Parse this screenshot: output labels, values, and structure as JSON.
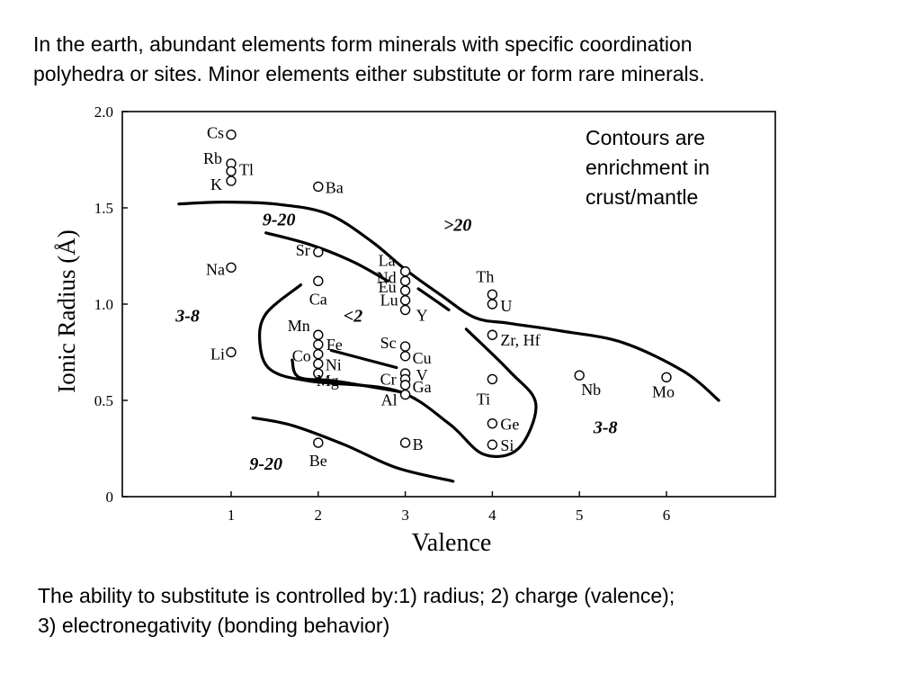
{
  "heading": {
    "line1": "In the earth, abundant elements form minerals with specific coordination",
    "line2": "polyhedra or sites.  Minor elements either substitute or form rare minerals."
  },
  "footer": {
    "line1": "The ability to substitute is controlled by:1) radius; 2) charge (valence);",
    "line2": "3) electronegativity (bonding behavior)"
  },
  "chart_data": {
    "type": "scatter",
    "title": "",
    "xlabel": "Valence",
    "ylabel": "Ionic Radius (Å)",
    "xlim": [
      -0.25,
      7.25
    ],
    "ylim": [
      0,
      2.0
    ],
    "x_ticks": [
      1,
      2,
      3,
      4,
      5,
      6
    ],
    "y_ticks": [
      0,
      0.5,
      1.0,
      1.5,
      2.0
    ],
    "y_tick_labels": [
      "0",
      "0.5",
      "1.0",
      "1.5",
      "2.0"
    ],
    "grid": false,
    "annotation_box": [
      "Contours are",
      "enrichment in",
      "crust/mantle"
    ],
    "points": [
      {
        "label": "Cs",
        "x": 1,
        "y": 1.88
      },
      {
        "label": "Rb",
        "x": 1,
        "y": 1.73
      },
      {
        "label": "Tl",
        "x": 1,
        "y": 1.69
      },
      {
        "label": "K",
        "x": 1,
        "y": 1.64
      },
      {
        "label": "Na",
        "x": 1,
        "y": 1.19
      },
      {
        "label": "Li",
        "x": 1,
        "y": 0.75
      },
      {
        "label": "Ba",
        "x": 2,
        "y": 1.61
      },
      {
        "label": "Sr",
        "x": 2,
        "y": 1.27
      },
      {
        "label": "Ca",
        "x": 2,
        "y": 1.12
      },
      {
        "label": "Mn",
        "x": 2,
        "y": 0.84
      },
      {
        "label": "Fe",
        "x": 2,
        "y": 0.79
      },
      {
        "label": "Co",
        "x": 2,
        "y": 0.74
      },
      {
        "label": "Ni",
        "x": 2,
        "y": 0.69
      },
      {
        "label": "Mg",
        "x": 2,
        "y": 0.64
      },
      {
        "label": "Be",
        "x": 2,
        "y": 0.28
      },
      {
        "label": "La",
        "x": 3,
        "y": 1.17
      },
      {
        "label": "Nd",
        "x": 3,
        "y": 1.12
      },
      {
        "label": "Eu",
        "x": 3,
        "y": 1.07
      },
      {
        "label": "Lu",
        "x": 3,
        "y": 1.02
      },
      {
        "label": "Y",
        "x": 3,
        "y": 0.97
      },
      {
        "label": "Sc",
        "x": 3,
        "y": 0.78
      },
      {
        "label": "Cu",
        "x": 3,
        "y": 0.73
      },
      {
        "label": "V",
        "x": 3,
        "y": 0.64
      },
      {
        "label": "Cr",
        "x": 3,
        "y": 0.61
      },
      {
        "label": "Ga",
        "x": 3,
        "y": 0.58
      },
      {
        "label": "Al",
        "x": 3,
        "y": 0.53
      },
      {
        "label": "B",
        "x": 3,
        "y": 0.28
      },
      {
        "label": "Th",
        "x": 4,
        "y": 1.05
      },
      {
        "label": "U",
        "x": 4,
        "y": 1.0
      },
      {
        "label": "Zr, Hf",
        "x": 4,
        "y": 0.84
      },
      {
        "label": "Ti",
        "x": 4,
        "y": 0.61
      },
      {
        "label": "Ge",
        "x": 4,
        "y": 0.38
      },
      {
        "label": "Si",
        "x": 4,
        "y": 0.27
      },
      {
        "label": "Nb",
        "x": 5,
        "y": 0.63
      },
      {
        "label": "Mo",
        "x": 6,
        "y": 0.62
      }
    ],
    "contour_labels": [
      {
        "label": "9-20",
        "x": 1.55,
        "y": 1.41
      },
      {
        "label": ">20",
        "x": 3.6,
        "y": 1.38
      },
      {
        "label": "3-8",
        "x": 0.5,
        "y": 0.91
      },
      {
        "label": "<2",
        "x": 2.4,
        "y": 0.91
      },
      {
        "label": "3-8",
        "x": 5.3,
        "y": 0.33
      },
      {
        "label": "9-20",
        "x": 1.4,
        "y": 0.14
      }
    ],
    "contours": [
      {
        "name": "outer-upper",
        "points": [
          [
            0.4,
            1.52
          ],
          [
            0.9,
            1.53
          ],
          [
            1.5,
            1.52
          ],
          [
            2.1,
            1.47
          ],
          [
            2.6,
            1.33
          ],
          [
            3.0,
            1.18
          ],
          [
            3.4,
            1.05
          ],
          [
            3.8,
            0.93
          ],
          [
            4.2,
            0.9
          ],
          [
            4.8,
            0.86
          ],
          [
            5.5,
            0.8
          ],
          [
            6.2,
            0.65
          ],
          [
            6.6,
            0.5
          ]
        ]
      },
      {
        "name": "inner-upper",
        "points": [
          [
            1.4,
            1.37
          ],
          [
            1.9,
            1.31
          ],
          [
            2.4,
            1.22
          ],
          [
            2.8,
            1.12
          ]
        ]
      },
      {
        "name": "inner-upper-2",
        "points": [
          [
            3.15,
            1.08
          ],
          [
            3.5,
            0.97
          ]
        ]
      },
      {
        "name": "loop",
        "points": [
          [
            1.8,
            1.1
          ],
          [
            1.4,
            0.95
          ],
          [
            1.33,
            0.8
          ],
          [
            1.45,
            0.66
          ],
          [
            1.9,
            0.6
          ],
          [
            2.9,
            0.55
          ],
          [
            3.5,
            0.38
          ],
          [
            3.9,
            0.22
          ],
          [
            4.3,
            0.25
          ],
          [
            4.5,
            0.48
          ],
          [
            4.2,
            0.65
          ],
          [
            3.7,
            0.87
          ]
        ]
      },
      {
        "name": "inner-arc",
        "points": [
          [
            1.7,
            0.71
          ],
          [
            1.78,
            0.62
          ],
          [
            2.2,
            0.6
          ],
          [
            3.0,
            0.54
          ]
        ]
      },
      {
        "name": "inner-segment",
        "points": [
          [
            2.15,
            0.76
          ],
          [
            2.9,
            0.67
          ]
        ]
      },
      {
        "name": "lower",
        "points": [
          [
            1.25,
            0.41
          ],
          [
            1.7,
            0.37
          ],
          [
            2.3,
            0.27
          ],
          [
            2.9,
            0.15
          ],
          [
            3.55,
            0.08
          ]
        ]
      }
    ]
  }
}
